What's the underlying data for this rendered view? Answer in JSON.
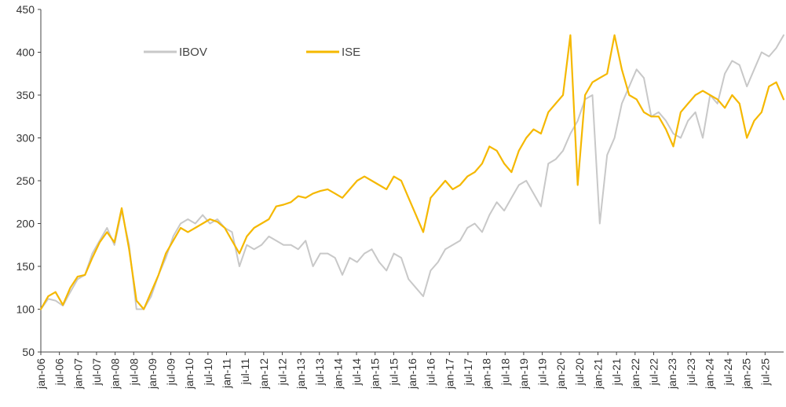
{
  "chart_data": {
    "type": "line",
    "title": "",
    "xlabel": "",
    "ylabel": "",
    "ylim": [
      50,
      450
    ],
    "y_ticks": [
      50,
      100,
      150,
      200,
      250,
      300,
      350,
      400,
      450
    ],
    "x_ticks": [
      "jan-06",
      "jul-06",
      "jan-07",
      "jul-07",
      "jan-08",
      "jul-08",
      "jan-09",
      "jul-09",
      "jan-10",
      "jul-10",
      "jan-11",
      "jul-11",
      "jan-12",
      "jul-12",
      "jan-13",
      "jul-13",
      "jan-14",
      "jul-14",
      "jan-15",
      "jul-15",
      "jan-16",
      "jul-16",
      "jan-17",
      "jul-17",
      "jan-18",
      "jul-18",
      "jan-19",
      "jul-19",
      "jan-20",
      "jul-20",
      "jan-21",
      "jul-21",
      "jan-22",
      "jul-22",
      "jan-23",
      "jul-23",
      "jan-24",
      "jul-24",
      "jan-25",
      "jul-25"
    ],
    "grid": false,
    "legend_position": "top-left",
    "series": [
      {
        "name": "IBOV",
        "color": "#c8c8c8",
        "values": [
          100,
          112,
          110,
          104,
          120,
          135,
          140,
          165,
          180,
          195,
          175,
          215,
          175,
          100,
          100,
          115,
          140,
          160,
          185,
          200,
          205,
          200,
          210,
          200,
          205,
          195,
          190,
          150,
          175,
          170,
          175,
          185,
          180,
          175,
          175,
          170,
          180,
          150,
          165,
          165,
          160,
          140,
          160,
          155,
          165,
          170,
          155,
          145,
          165,
          160,
          135,
          125,
          115,
          145,
          155,
          170,
          175,
          180,
          195,
          200,
          190,
          210,
          225,
          215,
          230,
          245,
          250,
          235,
          220,
          270,
          275,
          285,
          305,
          320,
          345,
          350,
          200,
          280,
          300,
          340,
          360,
          380,
          370,
          325,
          330,
          320,
          305,
          300,
          320,
          330,
          300,
          350,
          340,
          375,
          390,
          385,
          360,
          380,
          400,
          395,
          405,
          420
        ]
      },
      {
        "name": "ISE",
        "color": "#f5b800",
        "values": [
          100,
          115,
          120,
          105,
          125,
          138,
          140,
          160,
          178,
          190,
          178,
          218,
          170,
          110,
          100,
          120,
          140,
          165,
          180,
          195,
          190,
          195,
          200,
          205,
          202,
          195,
          180,
          165,
          185,
          195,
          200,
          205,
          220,
          222,
          225,
          232,
          230,
          235,
          238,
          240,
          235,
          230,
          240,
          250,
          255,
          250,
          245,
          240,
          255,
          250,
          230,
          210,
          190,
          230,
          240,
          250,
          240,
          245,
          255,
          260,
          270,
          290,
          285,
          270,
          260,
          285,
          300,
          310,
          305,
          330,
          340,
          350,
          420,
          245,
          350,
          365,
          370,
          375,
          420,
          380,
          350,
          345,
          330,
          325,
          325,
          310,
          290,
          330,
          340,
          350,
          355,
          350,
          345,
          335,
          350,
          340,
          300,
          320,
          330,
          360,
          365,
          345
        ]
      }
    ]
  }
}
